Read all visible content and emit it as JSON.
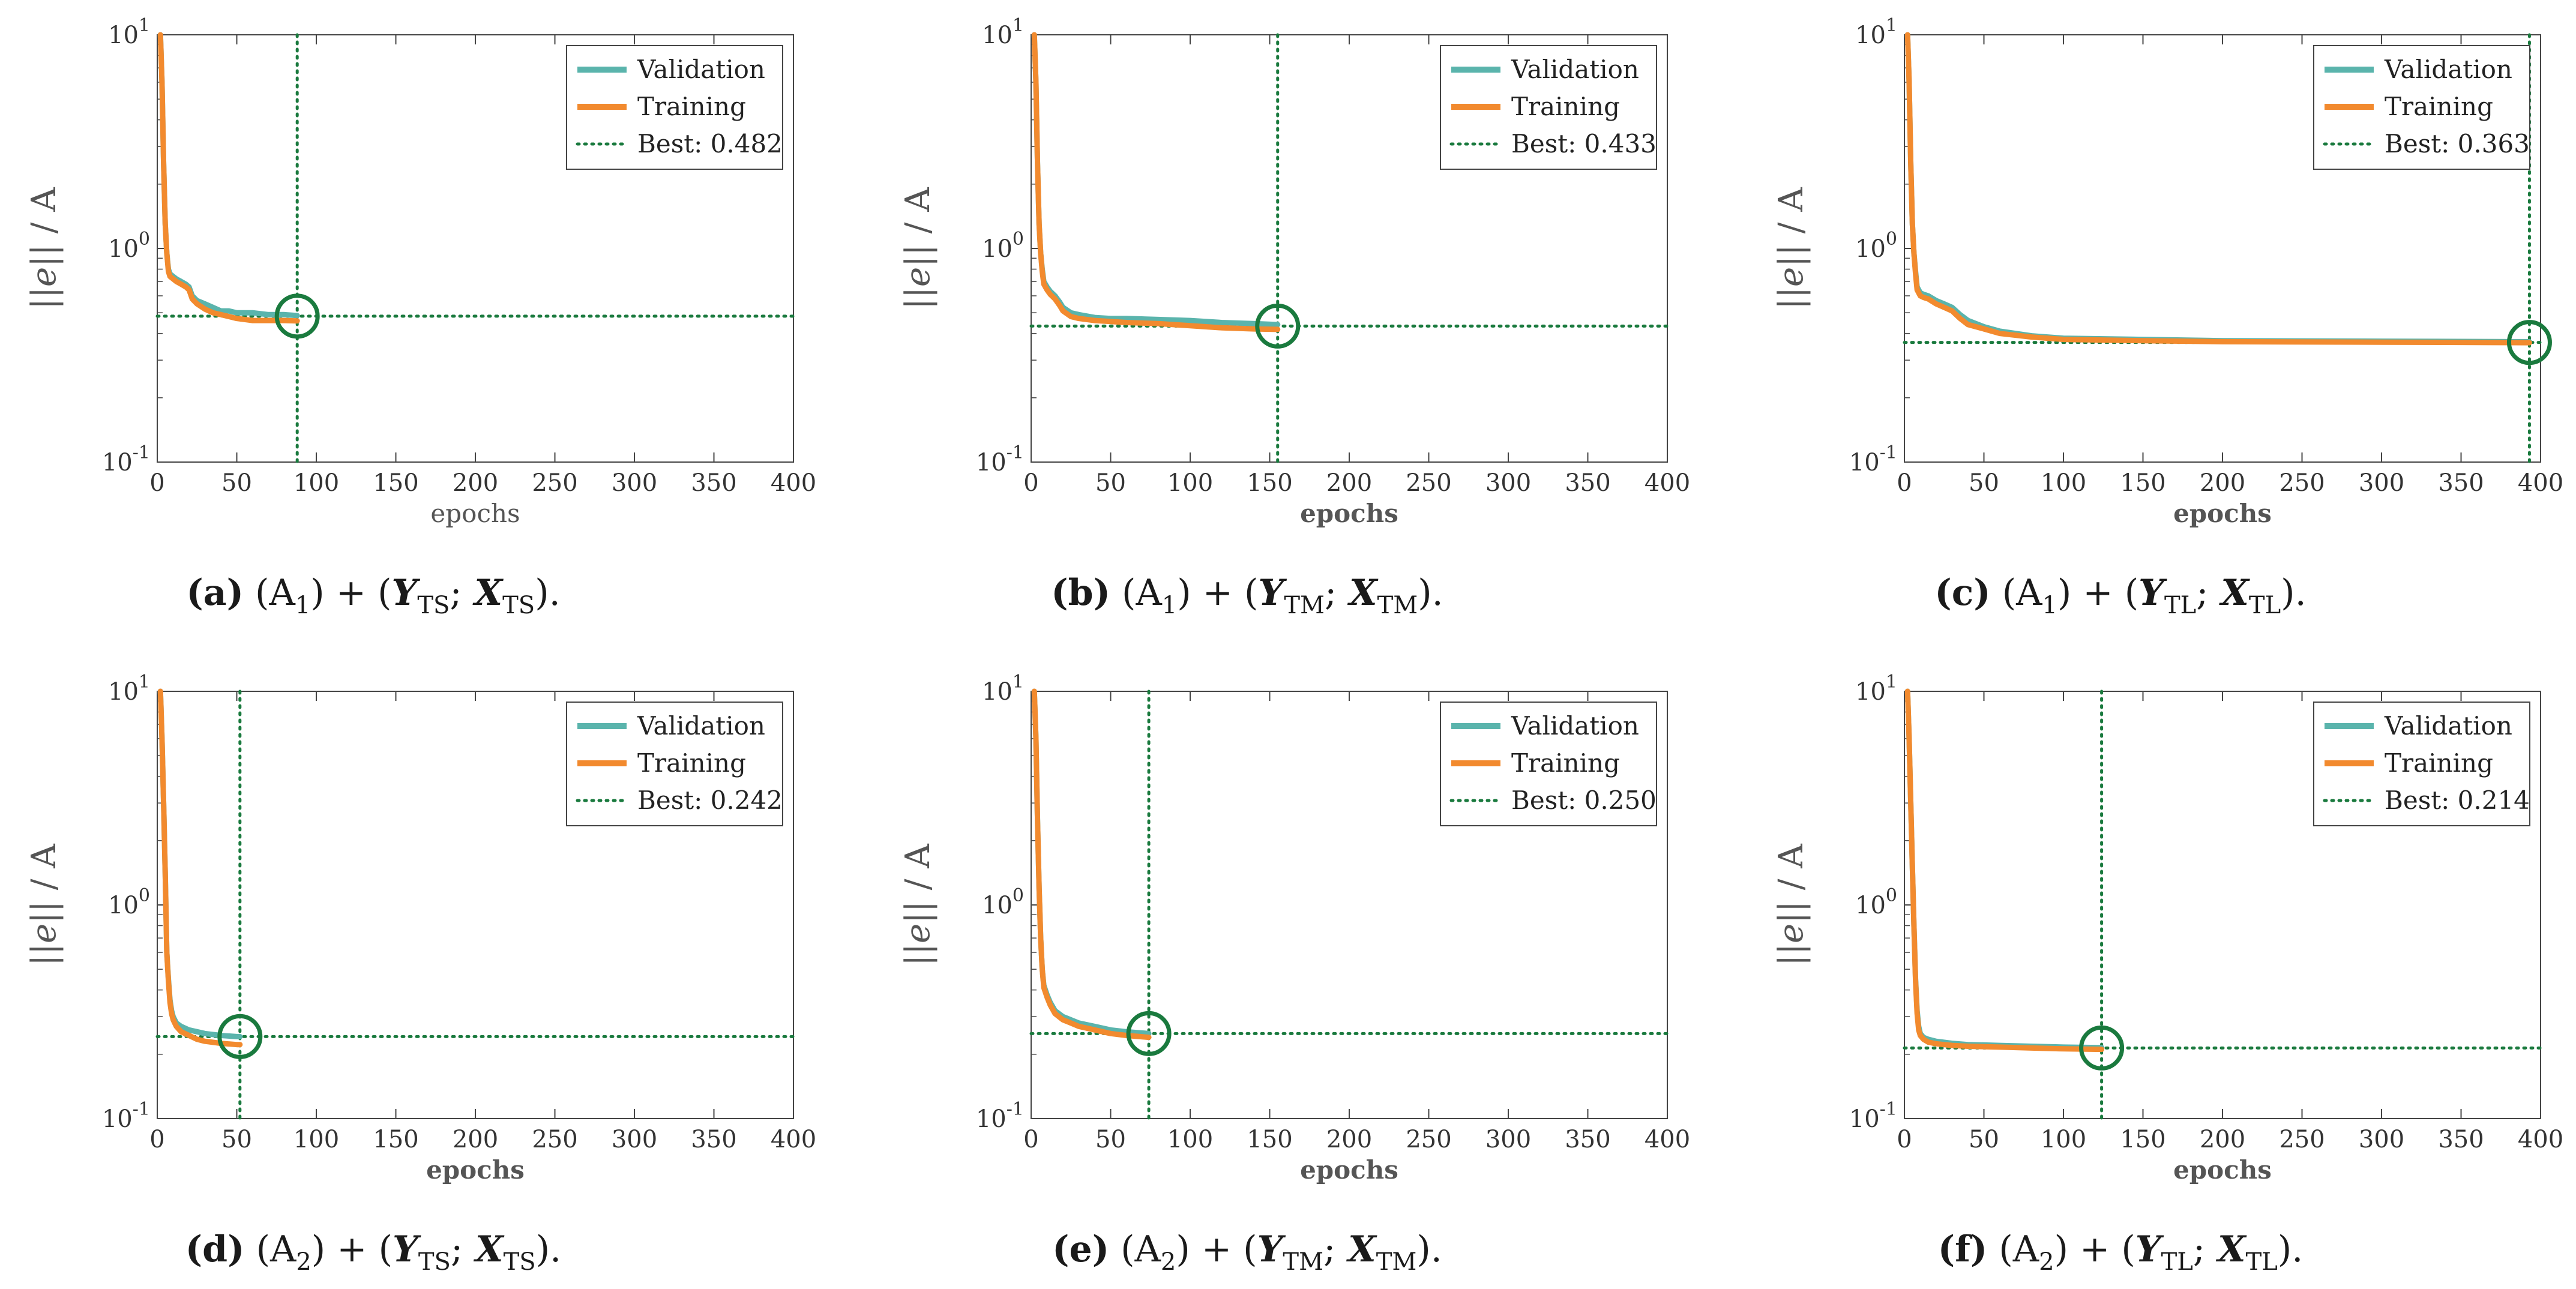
{
  "colors": {
    "validation": "#5ab4ac",
    "training": "#f28a2e",
    "best": "#1a7a3e",
    "axis": "#444444"
  },
  "chart_data": [
    {
      "id": "a",
      "type": "line",
      "xlabel": "epochs",
      "xlabel_weight": "normal",
      "ylabel": "||e|| / A",
      "yscale": "log",
      "xlim": [
        0,
        400
      ],
      "ylim": [
        0.1,
        10
      ],
      "xticks": [
        "0",
        "50",
        "100",
        "150",
        "200",
        "250",
        "300",
        "350",
        "400"
      ],
      "yticks": [
        "10^-1",
        "10^0",
        "10^1"
      ],
      "legend": [
        "Validation",
        "Training",
        "Best: 0.482"
      ],
      "best_epoch": 88,
      "best_value": 0.482,
      "series": [
        {
          "name": "Validation",
          "x": [
            2,
            3,
            4,
            5,
            6,
            7,
            8,
            10,
            12,
            15,
            18,
            20,
            22,
            25,
            30,
            35,
            40,
            45,
            50,
            60,
            70,
            80,
            88
          ],
          "y": [
            10,
            6,
            2.5,
            1.3,
            0.95,
            0.8,
            0.76,
            0.74,
            0.72,
            0.7,
            0.68,
            0.66,
            0.6,
            0.57,
            0.55,
            0.53,
            0.51,
            0.51,
            0.5,
            0.5,
            0.49,
            0.49,
            0.485
          ]
        },
        {
          "name": "Training",
          "x": [
            2,
            3,
            4,
            5,
            6,
            7,
            8,
            10,
            12,
            15,
            18,
            20,
            22,
            25,
            30,
            35,
            40,
            45,
            50,
            60,
            70,
            80,
            88
          ],
          "y": [
            10,
            6,
            2.5,
            1.3,
            0.95,
            0.78,
            0.74,
            0.72,
            0.7,
            0.68,
            0.66,
            0.64,
            0.58,
            0.55,
            0.52,
            0.5,
            0.49,
            0.48,
            0.47,
            0.46,
            0.46,
            0.46,
            0.458
          ]
        }
      ],
      "caption": {
        "tag": "(a)",
        "model": "(A",
        "model_sub": "1",
        "plus": ") + (",
        "y": "Y",
        "sub": "TS",
        "semi": ";",
        "x": "X",
        "end": ")."
      }
    },
    {
      "id": "b",
      "type": "line",
      "xlabel": "epochs",
      "xlabel_weight": "bold",
      "ylabel": "||e|| / A",
      "yscale": "log",
      "xlim": [
        0,
        400
      ],
      "ylim": [
        0.1,
        10
      ],
      "xticks": [
        "0",
        "50",
        "100",
        "150",
        "200",
        "250",
        "300",
        "350",
        "400"
      ],
      "yticks": [
        "10^-1",
        "10^0",
        "10^1"
      ],
      "legend": [
        "Validation",
        "Training",
        "Best: 0.433"
      ],
      "best_epoch": 155,
      "best_value": 0.433,
      "series": [
        {
          "name": "Validation",
          "x": [
            2,
            3,
            4,
            5,
            6,
            7,
            8,
            10,
            12,
            15,
            18,
            20,
            25,
            30,
            40,
            50,
            60,
            80,
            100,
            120,
            140,
            155
          ],
          "y": [
            10,
            6,
            2.5,
            1.3,
            0.95,
            0.8,
            0.7,
            0.66,
            0.63,
            0.6,
            0.56,
            0.53,
            0.5,
            0.49,
            0.475,
            0.47,
            0.47,
            0.465,
            0.46,
            0.45,
            0.445,
            0.44
          ]
        },
        {
          "name": "Training",
          "x": [
            2,
            3,
            4,
            5,
            6,
            7,
            8,
            10,
            12,
            15,
            18,
            20,
            25,
            30,
            40,
            50,
            60,
            80,
            100,
            120,
            140,
            155
          ],
          "y": [
            10,
            6,
            2.5,
            1.3,
            0.95,
            0.78,
            0.68,
            0.64,
            0.61,
            0.58,
            0.54,
            0.51,
            0.48,
            0.47,
            0.46,
            0.455,
            0.45,
            0.445,
            0.435,
            0.425,
            0.42,
            0.418
          ]
        }
      ],
      "caption": {
        "tag": "(b)",
        "model": "(A",
        "model_sub": "1",
        "plus": ") + (",
        "y": "Y",
        "sub": "TM",
        "semi": ";",
        "x": "X",
        "end": ")."
      }
    },
    {
      "id": "c",
      "type": "line",
      "xlabel": "epochs",
      "xlabel_weight": "bold",
      "ylabel": "||e|| / A",
      "yscale": "log",
      "xlim": [
        0,
        400
      ],
      "ylim": [
        0.1,
        10
      ],
      "xticks": [
        "0",
        "50",
        "100",
        "150",
        "200",
        "250",
        "300",
        "350",
        "400"
      ],
      "yticks": [
        "10^-1",
        "10^0",
        "10^1"
      ],
      "legend": [
        "Validation",
        "Training",
        "Best: 0.363"
      ],
      "best_epoch": 393,
      "best_value": 0.363,
      "series": [
        {
          "name": "Validation",
          "x": [
            2,
            3,
            4,
            5,
            6,
            7,
            8,
            10,
            12,
            15,
            20,
            25,
            30,
            35,
            40,
            50,
            60,
            80,
            100,
            150,
            200,
            300,
            393
          ],
          "y": [
            10,
            6,
            2.5,
            1.3,
            0.95,
            0.78,
            0.66,
            0.62,
            0.61,
            0.6,
            0.57,
            0.55,
            0.53,
            0.49,
            0.46,
            0.43,
            0.41,
            0.39,
            0.38,
            0.375,
            0.37,
            0.368,
            0.366
          ]
        },
        {
          "name": "Training",
          "x": [
            2,
            3,
            4,
            5,
            6,
            7,
            8,
            10,
            12,
            15,
            20,
            25,
            30,
            35,
            40,
            50,
            60,
            80,
            100,
            150,
            200,
            300,
            393
          ],
          "y": [
            10,
            6,
            2.5,
            1.3,
            0.95,
            0.76,
            0.64,
            0.6,
            0.59,
            0.58,
            0.55,
            0.53,
            0.51,
            0.47,
            0.44,
            0.42,
            0.4,
            0.385,
            0.375,
            0.37,
            0.366,
            0.364,
            0.362
          ]
        }
      ],
      "caption": {
        "tag": "(c)",
        "model": "(A",
        "model_sub": "1",
        "plus": ") + (",
        "y": "Y",
        "sub": "TL",
        "semi": ";",
        "x": "X",
        "end": ")."
      }
    },
    {
      "id": "d",
      "type": "line",
      "xlabel": "epochs",
      "xlabel_weight": "bold",
      "ylabel": "||e|| / A",
      "yscale": "log",
      "xlim": [
        0,
        400
      ],
      "ylim": [
        0.1,
        10
      ],
      "xticks": [
        "0",
        "50",
        "100",
        "150",
        "200",
        "250",
        "300",
        "350",
        "400"
      ],
      "yticks": [
        "10^-1",
        "10^0",
        "10^1"
      ],
      "legend": [
        "Validation",
        "Training",
        "Best: 0.242"
      ],
      "best_epoch": 52,
      "best_value": 0.242,
      "series": [
        {
          "name": "Validation",
          "x": [
            2,
            3,
            4,
            5,
            6,
            7,
            8,
            9,
            10,
            12,
            15,
            20,
            25,
            30,
            40,
            50,
            52
          ],
          "y": [
            10,
            6,
            3,
            1.4,
            0.6,
            0.45,
            0.36,
            0.32,
            0.3,
            0.28,
            0.27,
            0.26,
            0.255,
            0.25,
            0.245,
            0.242,
            0.242
          ]
        },
        {
          "name": "Training",
          "x": [
            2,
            3,
            4,
            5,
            6,
            7,
            8,
            9,
            10,
            12,
            15,
            20,
            25,
            30,
            40,
            50,
            52
          ],
          "y": [
            10,
            6,
            3,
            1.4,
            0.6,
            0.44,
            0.35,
            0.31,
            0.29,
            0.27,
            0.255,
            0.245,
            0.235,
            0.23,
            0.225,
            0.222,
            0.222
          ]
        }
      ],
      "caption": {
        "tag": "(d)",
        "model": "(A",
        "model_sub": "2",
        "plus": ") + (",
        "y": "Y",
        "sub": "TS",
        "semi": ";",
        "x": "X",
        "end": ")."
      }
    },
    {
      "id": "e",
      "type": "line",
      "xlabel": "epochs",
      "xlabel_weight": "bold",
      "ylabel": "||e|| / A",
      "yscale": "log",
      "xlim": [
        0,
        400
      ],
      "ylim": [
        0.1,
        10
      ],
      "xticks": [
        "0",
        "50",
        "100",
        "150",
        "200",
        "250",
        "300",
        "350",
        "400"
      ],
      "yticks": [
        "10^-1",
        "10^0",
        "10^1"
      ],
      "legend": [
        "Validation",
        "Training",
        "Best: 0.250"
      ],
      "best_epoch": 74,
      "best_value": 0.25,
      "series": [
        {
          "name": "Validation",
          "x": [
            2,
            3,
            4,
            5,
            6,
            7,
            8,
            10,
            12,
            15,
            20,
            25,
            30,
            40,
            50,
            60,
            74
          ],
          "y": [
            10,
            6,
            2.5,
            1.2,
            0.7,
            0.5,
            0.42,
            0.38,
            0.35,
            0.32,
            0.3,
            0.29,
            0.28,
            0.27,
            0.26,
            0.255,
            0.25
          ]
        },
        {
          "name": "Training",
          "x": [
            2,
            3,
            4,
            5,
            6,
            7,
            8,
            10,
            12,
            15,
            20,
            25,
            30,
            40,
            50,
            60,
            74
          ],
          "y": [
            10,
            6,
            2.5,
            1.2,
            0.7,
            0.5,
            0.41,
            0.37,
            0.34,
            0.31,
            0.29,
            0.28,
            0.27,
            0.26,
            0.25,
            0.245,
            0.24
          ]
        }
      ],
      "caption": {
        "tag": "(e)",
        "model": "(A",
        "model_sub": "2",
        "plus": ") + (",
        "y": "Y",
        "sub": "TM",
        "semi": ";",
        "x": "X",
        "end": ")."
      }
    },
    {
      "id": "f",
      "type": "line",
      "xlabel": "epochs",
      "xlabel_weight": "bold",
      "ylabel": "||e|| / A",
      "yscale": "log",
      "xlim": [
        0,
        400
      ],
      "ylim": [
        0.1,
        10
      ],
      "xticks": [
        "0",
        "50",
        "100",
        "150",
        "200",
        "250",
        "300",
        "350",
        "400"
      ],
      "yticks": [
        "10^-1",
        "10^0",
        "10^1"
      ],
      "legend": [
        "Validation",
        "Training",
        "Best: 0.214"
      ],
      "best_epoch": 124,
      "best_value": 0.214,
      "series": [
        {
          "name": "Validation",
          "x": [
            2,
            3,
            4,
            5,
            6,
            7,
            8,
            9,
            10,
            12,
            15,
            20,
            30,
            40,
            60,
            80,
            100,
            124
          ],
          "y": [
            10,
            6,
            3,
            1.5,
            0.8,
            0.45,
            0.32,
            0.27,
            0.25,
            0.24,
            0.235,
            0.23,
            0.225,
            0.222,
            0.22,
            0.218,
            0.216,
            0.215
          ]
        },
        {
          "name": "Training",
          "x": [
            2,
            3,
            4,
            5,
            6,
            7,
            8,
            9,
            10,
            12,
            15,
            20,
            30,
            40,
            60,
            80,
            100,
            124
          ],
          "y": [
            10,
            6,
            3,
            1.5,
            0.8,
            0.44,
            0.31,
            0.26,
            0.245,
            0.235,
            0.228,
            0.224,
            0.22,
            0.218,
            0.216,
            0.214,
            0.212,
            0.211
          ]
        }
      ],
      "caption": {
        "tag": "(f)",
        "model": "(A",
        "model_sub": "2",
        "plus": ") + (",
        "y": "Y",
        "sub": "TL",
        "semi": ";",
        "x": "X",
        "end": ")."
      }
    }
  ]
}
